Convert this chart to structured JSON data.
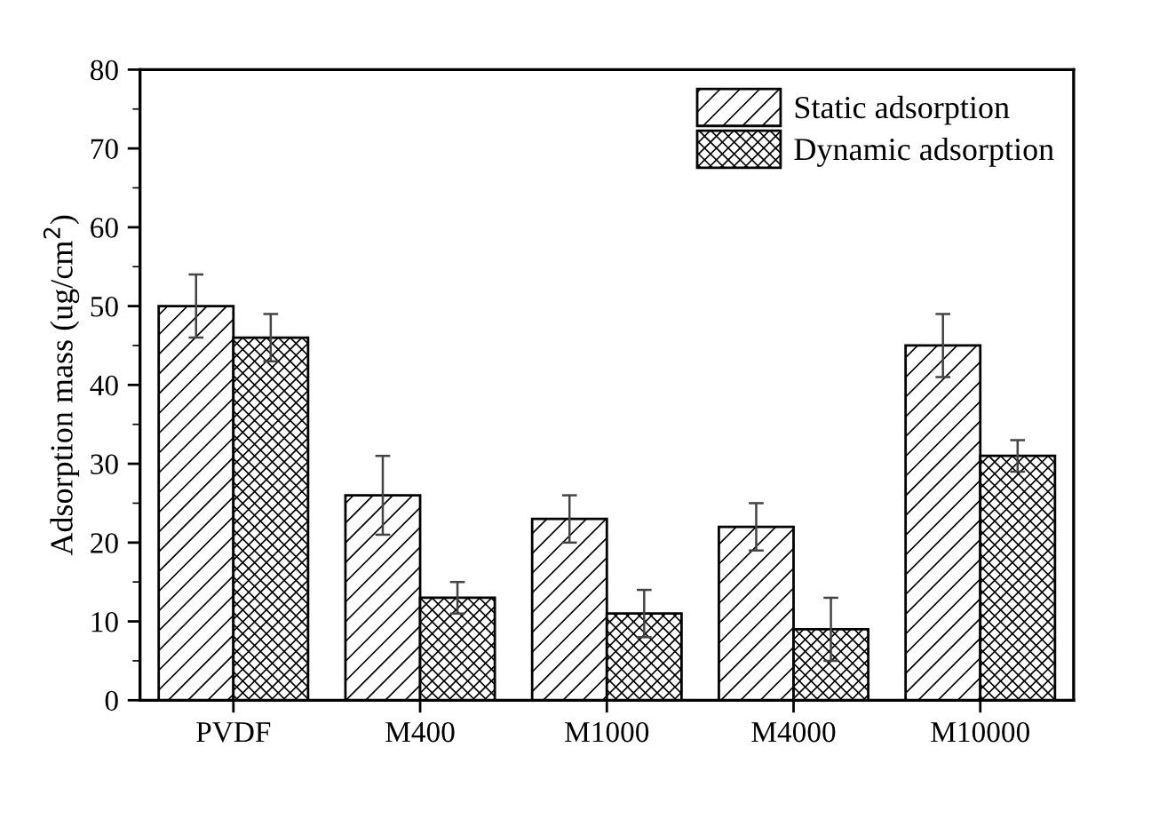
{
  "chart_data": {
    "type": "bar",
    "ylabel": "Adsorption mass (ug/cm$^{2}$)",
    "categories": [
      "PVDF",
      "M400",
      "M1000",
      "M4000",
      "M10000"
    ],
    "series": [
      {
        "name": "Static adsorption",
        "color": "#000000",
        "values": [
          50,
          26,
          23,
          22,
          45
        ],
        "errors": [
          4,
          5,
          3,
          3,
          4
        ]
      },
      {
        "name": "Dynamic adsorption",
        "color": "#000000",
        "values": [
          46,
          13,
          11,
          9,
          31
        ],
        "errors": [
          3,
          2,
          3,
          4,
          2
        ]
      }
    ],
    "ylim": [
      0,
      80
    ],
    "yticks": [
      0,
      10,
      20,
      30,
      40,
      50,
      60,
      70,
      80
    ],
    "grid": false,
    "legend": "top right"
  }
}
